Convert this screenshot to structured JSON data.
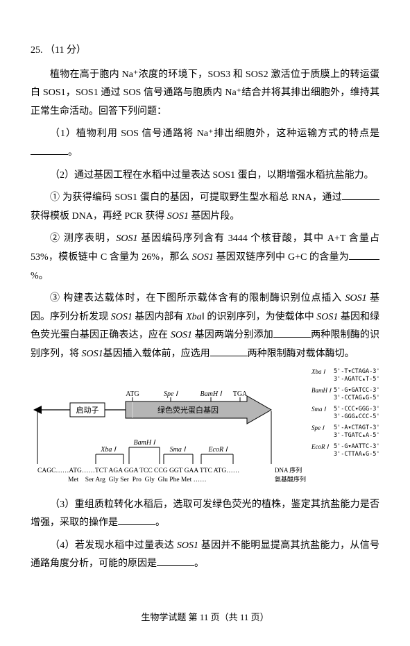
{
  "question": {
    "number": "25.",
    "points": "（11 分）",
    "intro": "植物在高于胞内 Na⁺浓度的环境下，SOS3 和 SOS2 激活位于质膜上的转运蛋白 SOS1，SOS1 通过 SOS 信号通路与胞质内 Na⁺结合并将其排出细胞外，维持其正常生命活动。回答下列问题：",
    "sub1": "（1）植物利用 SOS 信号通路将 Na⁺排出细胞外，这种运输方式的特点是",
    "sub1_end": "。",
    "sub2": "（2）通过基因工程在水稻中过量表达 SOS1 蛋白，以期增强水稻抗盐能力。",
    "sub2_1a": "① 为获得编码 SOS1 蛋白的基因，可提取野生型水稻总 RNA，通过",
    "sub2_1b": "获得模板 DNA，再经 PCR 获得 ",
    "sub2_1c": " 基因片段。",
    "sos1_italic": "SOS1",
    "sub2_2a": "② 测序表明，",
    "sub2_2b": " 基因编码序列含有 3444 个核苷酸，其中 A+T 含量占 53%，模板链中 C 含量为 26%，那么 ",
    "sub2_2c": " 基因双链序列中 G+C 的含量为",
    "sub2_2d": "%。",
    "sub2_3a": "③ 构建表达载体时，在下图所示载体含有的限制酶识别位点插入 ",
    "sub2_3b": " 基因。序列分析发现 ",
    "sub2_3c": " 基因内部有 ",
    "xbai": "Xba",
    "xbai_i": "Ⅰ",
    "sub2_3d": " 的识别序列，为使载体中 ",
    "sub2_3e": " 基因和绿色荧光蛋白基因正确表达，应在 ",
    "sub2_3f": " 基因两端分别添加",
    "sub2_3g": "两种限制酶的识别序列，将 ",
    "sub2_3h": "基因插入载体前，应选用",
    "sub2_3i": "两种限制酶对载体酶切。",
    "sub3a": "（3）重组质粒转化水稻后，选取可发绿色荧光的植株，鉴定其抗盐能力是否增强，采取的操作是",
    "sub3b": "。",
    "sub4a": "（4）若发现水稻中过量表达 ",
    "sub4b": " 基因并不能明显提高其抗盐能力，从信号通路角度分析，可能的原因是",
    "sub4c": "。"
  },
  "diagram": {
    "promoter_label": "启动子",
    "gfp_label": "绿色荧光蛋白基因",
    "labels_top": {
      "atg": "ATG",
      "spe": "Spe Ⅰ",
      "bamh": "BamH Ⅰ",
      "tga": "TGA"
    },
    "sites_bottom": [
      "Xba Ⅰ",
      "BamH Ⅰ",
      "Sma Ⅰ",
      "EcoR Ⅰ"
    ],
    "dna_seq": "CAGC……ATG……TCT AGA  GGA TCC CCG  GGT  GAA TTC ATG……",
    "dna_label": "DNA 序列",
    "aa_seq": "Met      Ser  Arg    Gly  Ser   Pro   Gly   Glu  Phe  Met ……",
    "aa_label": "氨基酸序列",
    "enzymes": [
      {
        "name": "Xba Ⅰ",
        "line1": "5'-TCTAGA-3'",
        "line2": "3'-AGATCT-5'",
        "cut1": 1,
        "cut2": 5
      },
      {
        "name": "BamH Ⅰ",
        "line1": "5'-GGATCC-3'",
        "line2": "3'-CCTAGG-5'",
        "cut1": 1,
        "cut2": 5
      },
      {
        "name": "Sma Ⅰ",
        "line1": "5'-CCCGGG-3'",
        "line2": "3'-GGGCCC-5'",
        "cut1": 3,
        "cut2": 3
      },
      {
        "name": "Spe Ⅰ",
        "line1": "5'-ACTAGT-3'",
        "line2": "3'-TGATCA-5'",
        "cut1": 1,
        "cut2": 5
      },
      {
        "name": "EcoR Ⅰ",
        "line1": "5'-GAATTC-3'",
        "line2": "3'-CTTAAG-5'",
        "cut1": 1,
        "cut2": 5
      }
    ],
    "colors": {
      "arrow_fill": "#888888",
      "gfp_fill": "#b5b5b5",
      "line": "#000000",
      "text": "#000000"
    }
  },
  "footer": "生物学试题  第 11 页（共 11 页）"
}
